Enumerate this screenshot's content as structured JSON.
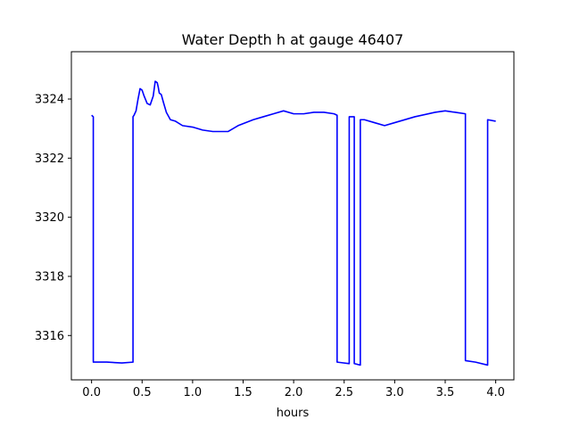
{
  "chart_data": {
    "type": "line",
    "title": "Water Depth h at gauge 46407",
    "xlabel": "hours",
    "ylabel": "",
    "xlim": [
      -0.2,
      4.18
    ],
    "ylim": [
      3314.5,
      3325.6
    ],
    "xticks": [
      0.0,
      0.5,
      1.0,
      1.5,
      2.0,
      2.5,
      3.0,
      3.5,
      4.0
    ],
    "xtick_labels": [
      "0.0",
      "0.5",
      "1.0",
      "1.5",
      "2.0",
      "2.5",
      "3.0",
      "3.5",
      "4.0"
    ],
    "yticks": [
      3316,
      3318,
      3320,
      3322,
      3324
    ],
    "ytick_labels": [
      "3316",
      "3318",
      "3320",
      "3322",
      "3324"
    ],
    "grid": false,
    "series": [
      {
        "name": "",
        "color": "#0000ff",
        "x": [
          0.0,
          0.017,
          0.017,
          0.15,
          0.3,
          0.41,
          0.41,
          0.42,
          0.44,
          0.46,
          0.48,
          0.5,
          0.52,
          0.55,
          0.58,
          0.61,
          0.63,
          0.65,
          0.66,
          0.67,
          0.69,
          0.71,
          0.74,
          0.78,
          0.83,
          0.9,
          1.0,
          1.1,
          1.2,
          1.35,
          1.45,
          1.6,
          1.7,
          1.8,
          1.9,
          2.0,
          2.05,
          2.1,
          2.2,
          2.3,
          2.4,
          2.43,
          2.43,
          2.55,
          2.55,
          2.6,
          2.6,
          2.66,
          2.66,
          2.7,
          2.8,
          2.9,
          3.0,
          3.2,
          3.4,
          3.5,
          3.6,
          3.7,
          3.7,
          3.8,
          3.92,
          3.92,
          4.0
        ],
        "y": [
          3323.45,
          3323.4,
          3315.1,
          3315.1,
          3315.07,
          3315.1,
          3323.4,
          3323.45,
          3323.6,
          3324.0,
          3324.35,
          3324.3,
          3324.1,
          3323.85,
          3323.8,
          3324.1,
          3324.6,
          3324.55,
          3324.4,
          3324.2,
          3324.15,
          3323.9,
          3323.55,
          3323.3,
          3323.25,
          3323.1,
          3323.05,
          3322.95,
          3322.9,
          3322.9,
          3323.1,
          3323.3,
          3323.4,
          3323.5,
          3323.6,
          3323.5,
          3323.5,
          3323.5,
          3323.55,
          3323.55,
          3323.5,
          3323.45,
          3315.1,
          3315.05,
          3323.4,
          3323.4,
          3315.05,
          3315.0,
          3323.3,
          3323.3,
          3323.2,
          3323.1,
          3323.2,
          3323.4,
          3323.55,
          3323.6,
          3323.55,
          3323.5,
          3315.15,
          3315.1,
          3315.0,
          3323.3,
          3323.25
        ]
      }
    ]
  }
}
